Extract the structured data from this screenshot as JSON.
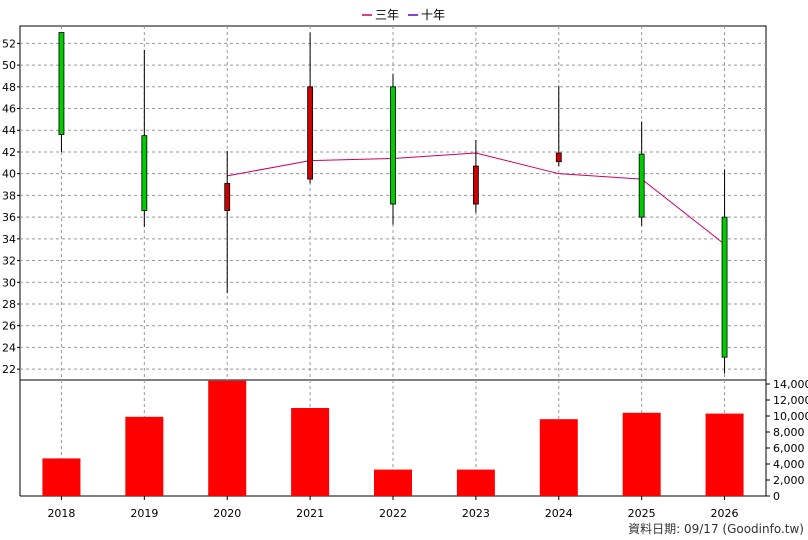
{
  "colors": {
    "up": "#00cc00",
    "down": "#cc0000",
    "line_3y": "#cc0066",
    "line_10y": "#6600cc",
    "volume": "#ff0000",
    "grid": "#999999"
  },
  "footer": {
    "text": "資料日期: 09/17 (Goodinfo.tw)"
  },
  "chart_data": [
    {
      "type": "candlestick",
      "categories": [
        "2018",
        "2019",
        "2020",
        "2021",
        "2022",
        "2023",
        "2024",
        "2025",
        "2026"
      ],
      "ohlc": [
        {
          "open": 43.6,
          "high": 53.0,
          "low": 42.0,
          "close": 53.0
        },
        {
          "open": 36.6,
          "high": 51.4,
          "low": 35.1,
          "close": 43.5
        },
        {
          "open": 39.1,
          "high": 42.1,
          "low": 29.0,
          "close": 36.6
        },
        {
          "open": 48.0,
          "high": 53.0,
          "low": 39.1,
          "close": 39.5
        },
        {
          "open": 37.2,
          "high": 49.2,
          "low": 35.3,
          "close": 48.0
        },
        {
          "open": 40.7,
          "high": 43.1,
          "low": 36.4,
          "close": 37.2
        },
        {
          "open": 41.9,
          "high": 48.1,
          "low": 40.7,
          "close": 41.1
        },
        {
          "open": 36.0,
          "high": 44.8,
          "low": 35.2,
          "close": 41.8
        },
        {
          "open": 23.1,
          "high": 40.4,
          "low": 21.6,
          "close": 36.0
        }
      ],
      "series": [
        {
          "name": "三年",
          "values": [
            null,
            null,
            39.8,
            41.2,
            41.4,
            41.9,
            40.0,
            39.5,
            33.5
          ]
        },
        {
          "name": "十年",
          "values": [
            null,
            null,
            null,
            null,
            null,
            null,
            null,
            null,
            null
          ]
        }
      ],
      "ylim": [
        21,
        53.6
      ],
      "yticks": [
        22,
        24,
        26,
        28,
        30,
        32,
        34,
        36,
        38,
        40,
        42,
        44,
        46,
        48,
        50,
        52
      ],
      "grid": true,
      "legend": "top-center"
    },
    {
      "type": "bar",
      "categories": [
        "2018",
        "2019",
        "2020",
        "2021",
        "2022",
        "2023",
        "2024",
        "2025",
        "2026"
      ],
      "values": [
        4700,
        9900,
        14400,
        11000,
        3300,
        3300,
        9600,
        10400,
        10300
      ],
      "ylim": [
        0,
        14000
      ],
      "yticks": [
        0,
        2000,
        4000,
        6000,
        8000,
        10000,
        12000,
        14000
      ],
      "ytick_labels": [
        "0",
        "2,000",
        "4,000",
        "6,000",
        "8,000",
        "10,000",
        "12,000",
        "14,000"
      ]
    }
  ]
}
